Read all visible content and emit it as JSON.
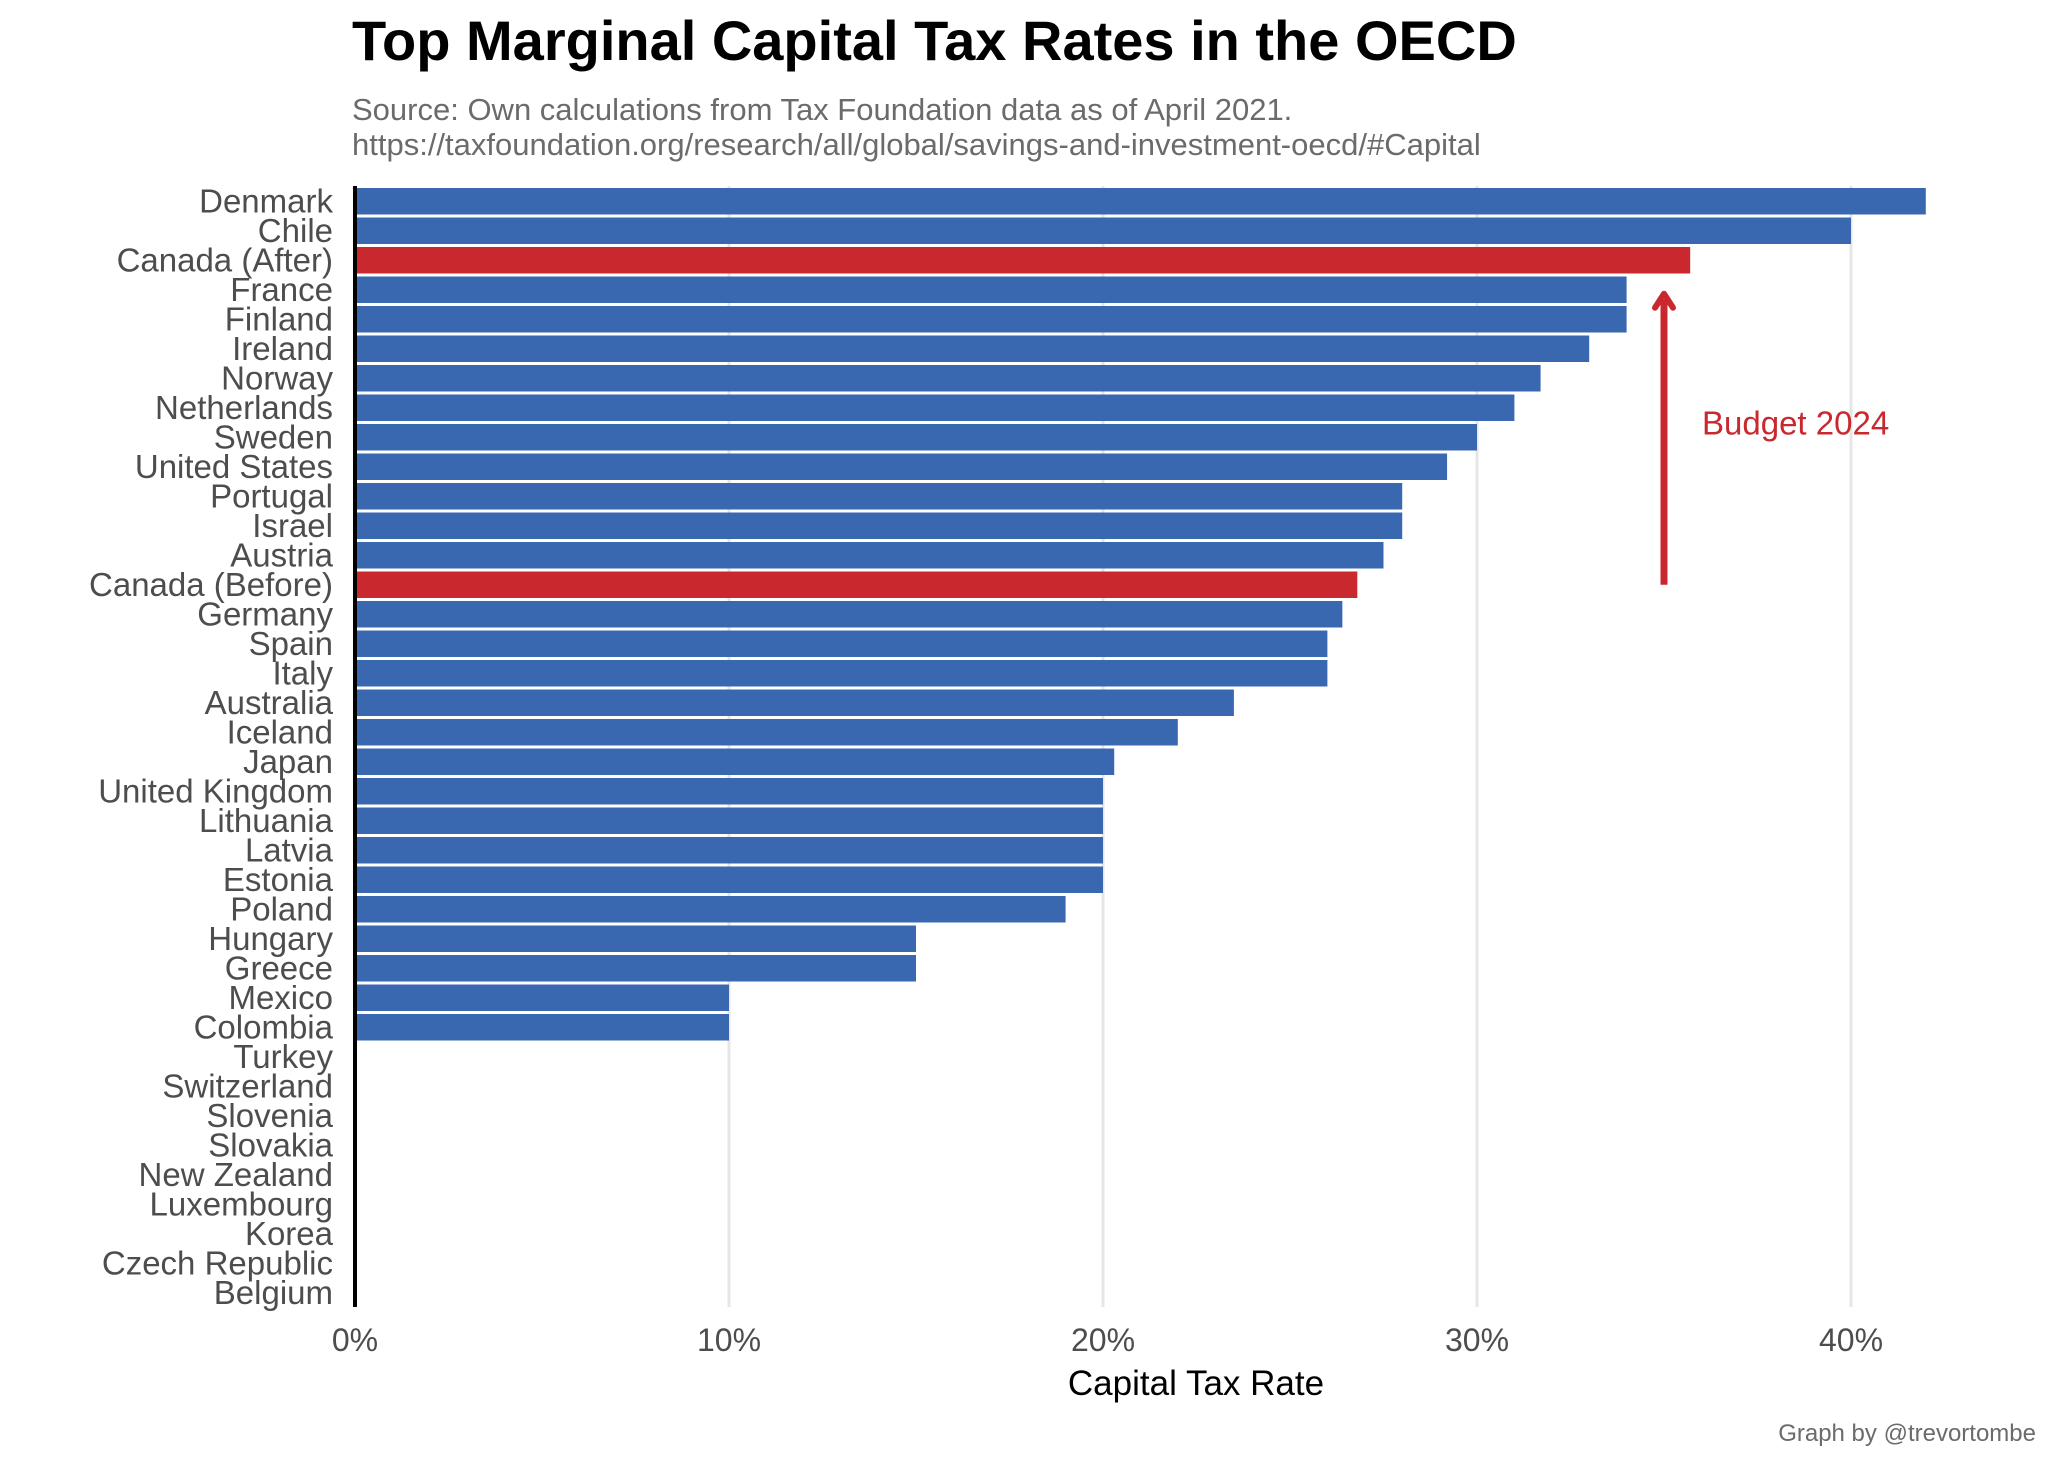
{
  "chart_data": {
    "type": "bar",
    "orientation": "horizontal",
    "title": "Top Marginal Capital Tax Rates in the OECD",
    "subtitle": [
      "Source: Own calculations from Tax Foundation data as of April 2021.",
      "https://taxfoundation.org/research/all/global/savings-and-investment-oecd/#Capital"
    ],
    "xlabel": "Capital Tax Rate",
    "ylabel": "",
    "xlim": [
      0,
      42
    ],
    "x_ticks": [
      0,
      10,
      20,
      30,
      40
    ],
    "x_tick_labels": [
      "0%",
      "10%",
      "20%",
      "30%",
      "40%"
    ],
    "grid": "vertical major gridlines",
    "categories": [
      "Denmark",
      "Chile",
      "Canada (After)",
      "France",
      "Finland",
      "Ireland",
      "Norway",
      "Netherlands",
      "Sweden",
      "United States",
      "Portugal",
      "Israel",
      "Austria",
      "Canada (Before)",
      "Germany",
      "Spain",
      "Italy",
      "Australia",
      "Iceland",
      "Japan",
      "United Kingdom",
      "Lithuania",
      "Latvia",
      "Estonia",
      "Poland",
      "Hungary",
      "Greece",
      "Mexico",
      "Colombia",
      "Turkey",
      "Switzerland",
      "Slovenia",
      "Slovakia",
      "New Zealand",
      "Luxembourg",
      "Korea",
      "Czech Republic",
      "Belgium"
    ],
    "values": [
      42,
      40,
      35.7,
      34,
      34,
      33,
      31.7,
      31,
      30,
      29.2,
      28,
      28,
      27.5,
      26.8,
      26.4,
      26,
      26,
      23.5,
      22,
      20.3,
      20,
      20,
      20,
      20,
      19,
      15,
      15,
      10,
      10,
      0,
      0,
      0,
      0,
      0,
      0,
      0,
      0,
      0
    ],
    "highlight": [
      "Canada (After)",
      "Canada (Before)"
    ],
    "colors": {
      "bar": "#3a68b0",
      "highlight": "#c8282e",
      "axis": "#000000",
      "grid": "#e6e6e6",
      "label": "#4d4d4d"
    },
    "annotation": {
      "text": "Budget 2024",
      "color": "#c8282e",
      "arrow_from": 26.8,
      "arrow_to": 35.7,
      "x": 35
    },
    "caption": "Graph by @trevortombe"
  }
}
